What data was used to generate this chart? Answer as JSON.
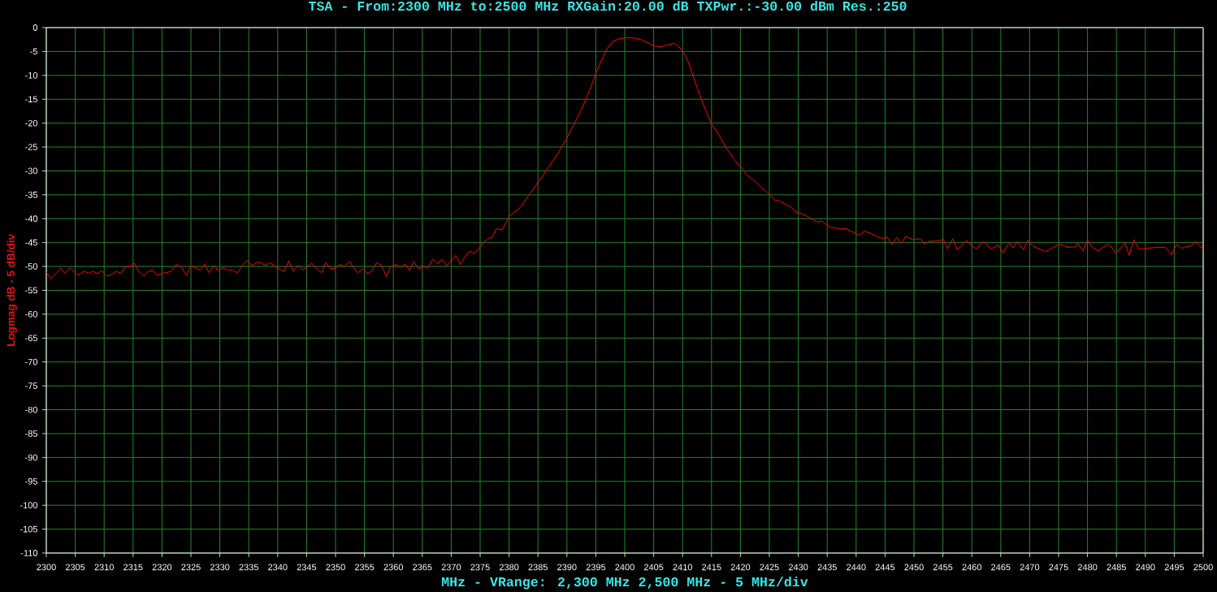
{
  "chart_data": {
    "type": "line",
    "title": "TSA - From:2300 MHz to:2500 MHz RXGain:20.00 dB TXPwr.:-30.00 dBm Res.:250",
    "xlabel": "MHz - VRange: 2,300 MHz 2,500 MHz - 5 MHz/div",
    "ylabel": "Logmag dB - 5 dB/div",
    "x": [
      2300,
      2300.8,
      2302.5,
      2303.2,
      2304.1,
      2305,
      2305.5,
      2306.5,
      2307.4,
      2308,
      2308.8,
      2309.6,
      2310.4,
      2311.1,
      2312.1,
      2312.9,
      2313.6,
      2314.5,
      2315.2,
      2316,
      2316.8,
      2317.6,
      2318.4,
      2319.2,
      2320.1,
      2320.9,
      2321.7,
      2322.5,
      2323.3,
      2324.2,
      2325,
      2325.6,
      2326.6,
      2327.4,
      2328.1,
      2329,
      2329.8,
      2330.6,
      2331.4,
      2332.2,
      2333,
      2333.8,
      2334.7,
      2335.5,
      2336.3,
      2336.9,
      2337.9,
      2338.7,
      2339.5,
      2340.3,
      2341.1,
      2341.9,
      2342.7,
      2343.5,
      2344.3,
      2345.1,
      2345.9,
      2346.7,
      2347.6,
      2348.3,
      2349.1,
      2349.9,
      2350.7,
      2351.5,
      2352.4,
      2353.1,
      2353.8,
      2354.7,
      2355.5,
      2356.3,
      2357.1,
      2357.9,
      2358.8,
      2359.5,
      2360.4,
      2361.2,
      2362,
      2362.8,
      2363.5,
      2364.4,
      2365.2,
      2365.9,
      2366.8,
      2367.6,
      2368.4,
      2369.2,
      2370,
      2370.8,
      2371.6,
      2372.4,
      2373.2,
      2374.1,
      2374.9,
      2376.3,
      2377,
      2377.8,
      2378.8,
      2380,
      2381.9,
      2383.3,
      2385,
      2386.6,
      2388.4,
      2390,
      2391.2,
      2392.6,
      2393.9,
      2395,
      2395.9,
      2397,
      2398,
      2399.2,
      2400.6,
      2401.8,
      2403,
      2404.2,
      2405.3,
      2406.3,
      2407.4,
      2408.5,
      2409.3,
      2410.2,
      2410.9,
      2411.9,
      2413,
      2414,
      2415,
      2416.3,
      2417.5,
      2418.9,
      2420,
      2421.1,
      2422.7,
      2425,
      2426,
      2426.8,
      2427.9,
      2428.7,
      2429.4,
      2430.7,
      2432,
      2432.9,
      2433.4,
      2434.1,
      2435,
      2435.8,
      2436.9,
      2437.5,
      2438.1,
      2439.6,
      2440.5,
      2441.4,
      2442.4,
      2444,
      2444.8,
      2445.4,
      2446.2,
      2447,
      2447.8,
      2448.6,
      2449.8,
      2451.1,
      2451.7,
      2452.7,
      2453.8,
      2455.1,
      2455.8,
      2456.7,
      2457.5,
      2459,
      2460.8,
      2461.8,
      2462.3,
      2463.3,
      2464.6,
      2465.4,
      2466.5,
      2467.1,
      2467.9,
      2468.9,
      2469.7,
      2470.5,
      2472.7,
      2475.2,
      2476.7,
      2477.9,
      2478.3,
      2479.2,
      2480,
      2480.9,
      2481.9,
      2483.4,
      2484.2,
      2484.9,
      2486.5,
      2487.2,
      2488,
      2488.9,
      2490,
      2491.6,
      2493.5,
      2494.5,
      2495.4,
      2496.3,
      2497.1,
      2497.9,
      2498.7,
      2500
    ],
    "series": [
      {
        "color": "#ff0000",
        "values": [
          -51.2,
          -52.6,
          -50.4,
          -51.5,
          -50.2,
          -51.3,
          -51.8,
          -51.0,
          -51.4,
          -51.0,
          -51.5,
          -50.9,
          -52.0,
          -51.8,
          -51.0,
          -51.5,
          -50.1,
          -50.1,
          -49.3,
          -51.1,
          -52.0,
          -51.1,
          -50.8,
          -51.9,
          -51.4,
          -51.3,
          -50.9,
          -49.6,
          -50.1,
          -51.8,
          -50.0,
          -50.1,
          -50.8,
          -49.5,
          -51.3,
          -49.8,
          -50.9,
          -50.2,
          -50.8,
          -50.7,
          -51.4,
          -49.9,
          -48.8,
          -49.8,
          -49.3,
          -49.1,
          -49.8,
          -49.2,
          -50.0,
          -50.5,
          -51.1,
          -48.8,
          -51.0,
          -49.8,
          -50.7,
          -50.1,
          -49.3,
          -50.4,
          -51.3,
          -49.2,
          -50.4,
          -50.4,
          -49.6,
          -50.0,
          -48.9,
          -50.2,
          -51.3,
          -50.5,
          -51.5,
          -50.9,
          -49.2,
          -49.7,
          -52.1,
          -50.1,
          -49.6,
          -50.2,
          -49.5,
          -50.8,
          -49.0,
          -50.5,
          -50.0,
          -50.4,
          -48.5,
          -49.4,
          -48.5,
          -49.9,
          -48.8,
          -47.7,
          -49.6,
          -47.9,
          -46.8,
          -47.3,
          -46.0,
          -44.1,
          -44.0,
          -42.1,
          -42.4,
          -39.5,
          -37.7,
          -35.3,
          -32.4,
          -29.6,
          -26.4,
          -23.1,
          -20.3,
          -16.9,
          -13.2,
          -9.6,
          -7.0,
          -4.3,
          -2.8,
          -2.3,
          -2.1,
          -2.2,
          -2.6,
          -3.3,
          -3.9,
          -4.0,
          -3.6,
          -3.3,
          -3.9,
          -5.3,
          -7.0,
          -10.4,
          -14.3,
          -17.3,
          -20.2,
          -22.5,
          -25.1,
          -27.6,
          -29.1,
          -30.8,
          -32.4,
          -34.9,
          -36.2,
          -36.3,
          -37.1,
          -37.5,
          -38.5,
          -39.0,
          -39.8,
          -40.5,
          -40.7,
          -40.5,
          -41.4,
          -41.9,
          -42.0,
          -42.2,
          -42.0,
          -42.9,
          -43.5,
          -42.6,
          -43.0,
          -44.0,
          -44.1,
          -43.9,
          -45.4,
          -43.9,
          -45.2,
          -43.7,
          -44.4,
          -44.2,
          -45.3,
          -44.7,
          -44.7,
          -44.4,
          -46.3,
          -44.2,
          -46.5,
          -44.6,
          -46.4,
          -44.9,
          -44.9,
          -46.4,
          -45.5,
          -47.2,
          -44.9,
          -46.1,
          -44.8,
          -46.5,
          -44.5,
          -45.7,
          -46.9,
          -45.3,
          -46.0,
          -45.9,
          -45.1,
          -46.7,
          -44.5,
          -46.1,
          -46.7,
          -45.4,
          -46.0,
          -47.3,
          -45.1,
          -47.7,
          -44.4,
          -46.4,
          -46.3,
          -46.0,
          -46.0,
          -47.6,
          -45.4,
          -46.2,
          -45.8,
          -45.7,
          -44.8,
          -46.4
        ]
      }
    ],
    "xlim": [
      2300,
      2500
    ],
    "ylim": [
      -110,
      0
    ],
    "xticks": [
      2300,
      2305,
      2310,
      2315,
      2320,
      2325,
      2330,
      2335,
      2340,
      2345,
      2350,
      2355,
      2360,
      2365,
      2370,
      2375,
      2380,
      2385,
      2390,
      2395,
      2400,
      2405,
      2410,
      2415,
      2420,
      2425,
      2430,
      2435,
      2440,
      2445,
      2450,
      2455,
      2460,
      2465,
      2470,
      2475,
      2480,
      2485,
      2490,
      2495,
      2500
    ],
    "yticks": [
      -110,
      -105,
      -100,
      -95,
      -90,
      -85,
      -80,
      -75,
      -70,
      -65,
      -60,
      -55,
      -50,
      -45,
      -40,
      -35,
      -30,
      -25,
      -20,
      -15,
      -10,
      -5,
      0
    ],
    "grid": true
  }
}
